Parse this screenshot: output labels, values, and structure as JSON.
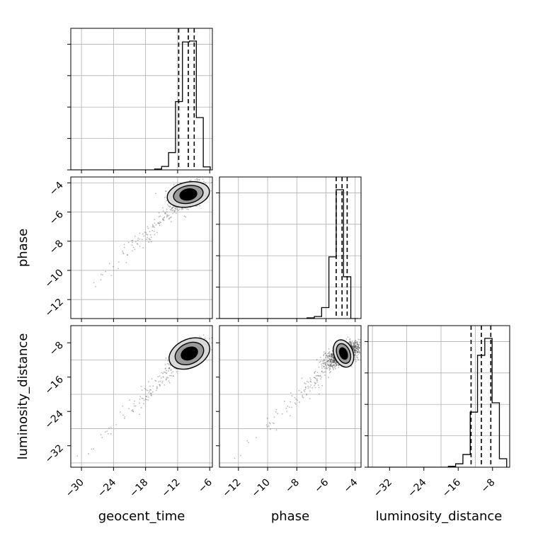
{
  "chart_data": {
    "type": "corner",
    "parameters": [
      {
        "name": "geocent_time",
        "range": [
          -32,
          -5.5
        ],
        "ticks": [
          -30,
          -24,
          -18,
          -12,
          -6
        ],
        "grid": [
          -30,
          -24,
          -18,
          -12,
          -6
        ],
        "quantiles": [
          -11.8,
          -10.0,
          -8.9
        ]
      },
      {
        "name": "phase",
        "range": [
          -13.3,
          -3.6
        ],
        "ticks": [
          -12,
          -10,
          -8,
          -6,
          -4
        ],
        "grid": [
          -12,
          -10,
          -8,
          -6,
          -4
        ],
        "quantiles": [
          -5.3,
          -4.9,
          -4.55
        ]
      },
      {
        "name": "luminosity_distance",
        "range": [
          -37,
          -4
        ],
        "ticks": [
          -32,
          -24,
          -16,
          -8
        ],
        "grid": [
          -36,
          -28,
          -20,
          -12,
          -4
        ],
        "quantiles": [
          -13,
          -10.6,
          -8.4
        ]
      }
    ],
    "histograms": [
      {
        "parameter": "geocent_time",
        "edges": [
          -32,
          -30.7,
          -29.3,
          -28,
          -26.7,
          -25.4,
          -24.1,
          -22.8,
          -21.5,
          -20.2,
          -18.9,
          -17.6,
          -16.3,
          -15,
          -13.7,
          -12.4,
          -11.1,
          -9.8,
          -8.5,
          -7.2,
          -5.9
        ],
        "counts": [
          0,
          0,
          0,
          0,
          0,
          0,
          0,
          0,
          0,
          0,
          0,
          0,
          2,
          8,
          40,
          158,
          296,
          298,
          121,
          7
        ]
      },
      {
        "parameter": "phase",
        "edges": [
          -13.3,
          -12.8,
          -12.3,
          -11.8,
          -11.3,
          -10.8,
          -10.3,
          -9.8,
          -9.3,
          -8.8,
          -8.3,
          -7.8,
          -7.3,
          -6.8,
          -6.3,
          -5.8,
          -5.3,
          -4.8,
          -4.3,
          -3.8
        ],
        "counts": [
          0,
          0,
          0,
          0,
          0,
          0,
          0,
          0,
          0,
          0,
          0,
          0,
          1,
          3,
          16,
          90,
          188,
          61,
          0
        ]
      },
      {
        "parameter": "luminosity_distance",
        "edges": [
          -37,
          -35.3,
          -33.6,
          -31.9,
          -30.2,
          -28.5,
          -26.8,
          -25.1,
          -23.4,
          -21.7,
          -20,
          -18.3,
          -16.6,
          -14.9,
          -13.2,
          -11.5,
          -9.8,
          -8.1,
          -6.4,
          -4.7
        ],
        "counts": [
          0,
          0,
          0,
          0,
          0,
          0,
          0,
          0,
          0,
          0,
          0,
          1,
          4,
          15,
          65,
          132,
          152,
          76,
          10
        ]
      }
    ],
    "contours": [
      {
        "x": "geocent_time",
        "y": "phase",
        "center": [
          -10.0,
          -4.8
        ],
        "levels": [
          [
            1.6,
            0.38
          ],
          [
            2.8,
            0.6
          ],
          [
            4.0,
            0.85
          ]
        ],
        "tilt": 0.25
      },
      {
        "x": "geocent_time",
        "y": "luminosity_distance",
        "center": [
          -9.8,
          -10.5
        ],
        "levels": [
          [
            1.6,
            1.4
          ],
          [
            2.8,
            2.4
          ],
          [
            4.0,
            3.3
          ]
        ],
        "tilt": 0.6
      },
      {
        "x": "phase",
        "y": "luminosity_distance",
        "center": [
          -4.8,
          -10.5
        ],
        "levels": [
          [
            0.25,
            1.4
          ],
          [
            0.45,
            2.4
          ],
          [
            0.65,
            3.3
          ]
        ],
        "tilt": 0.5
      }
    ]
  }
}
